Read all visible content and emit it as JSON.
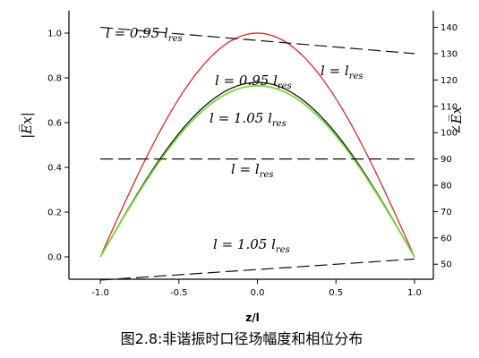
{
  "chart_data": {
    "type": "line",
    "xlabel": "z/l",
    "ylabel_left": "|E̅x|",
    "ylabel_right": "∠E̅x",
    "xlim": [
      -1.2,
      1.12
    ],
    "ylim_left": [
      -0.1,
      1.1
    ],
    "ylim_right": [
      44.3,
      146.3
    ],
    "x_ticks": [
      -1.0,
      -0.5,
      0.0,
      0.5,
      1.0
    ],
    "x_tick_labels": [
      "-1.0",
      "-0.5",
      "0.0",
      "0.5",
      "1.0"
    ],
    "y_left_ticks": [
      0.0,
      0.2,
      0.4,
      0.6,
      0.8,
      1.0
    ],
    "y_left_tick_labels": [
      "0.0",
      "0.2",
      "0.4",
      "0.6",
      "0.8",
      "1.0"
    ],
    "y_right_ticks": [
      50,
      60,
      70,
      80,
      90,
      100,
      110,
      120,
      130,
      140
    ],
    "y_right_tick_labels": [
      "50",
      "60",
      "70",
      "80",
      "90",
      "100",
      "110",
      "120",
      "130",
      "140"
    ],
    "magnitude_series": [
      {
        "name": "l = l_res",
        "color": "#d42a2a",
        "peak": 1.0,
        "x": [
          -1.0,
          0.0,
          1.0
        ],
        "y": [
          0.0,
          1.0,
          0.0
        ]
      },
      {
        "name": "l = 0.95 l_res",
        "color": "#111111",
        "peak": 0.78,
        "x": [
          -1.0,
          0.0,
          1.0
        ],
        "y": [
          0.0,
          0.78,
          0.0
        ]
      },
      {
        "name": "l = 1.05 l_res",
        "color": "#7fd63a",
        "peak": 0.765,
        "x": [
          -1.0,
          0.0,
          1.0
        ],
        "y": [
          0.0,
          0.765,
          0.0
        ]
      }
    ],
    "phase_series": [
      {
        "name": "l = 0.95 l_res",
        "color": "#111111",
        "x": [
          -1.0,
          1.0
        ],
        "y": [
          140.0,
          130.0
        ]
      },
      {
        "name": "l = l_res",
        "color": "#111111",
        "x": [
          -1.0,
          1.0
        ],
        "y": [
          90.0,
          90.0
        ]
      },
      {
        "name": "l = 1.05 l_res",
        "color": "#111111",
        "x": [
          -1.0,
          1.0
        ],
        "y": [
          44.0,
          52.0
        ]
      }
    ],
    "annotations": [
      {
        "main": "l = 0.95 l",
        "sub": "res"
      },
      {
        "main": "l = l",
        "sub": "res"
      },
      {
        "main": "l = 0.95 l",
        "sub": "res"
      },
      {
        "main": "l = 1.05 l",
        "sub": "res"
      },
      {
        "main": "l = l",
        "sub": "res"
      },
      {
        "main": "l = 1.05 l",
        "sub": "res"
      }
    ]
  },
  "caption": "图2.8:非谐振时口径场幅度和相位分布"
}
